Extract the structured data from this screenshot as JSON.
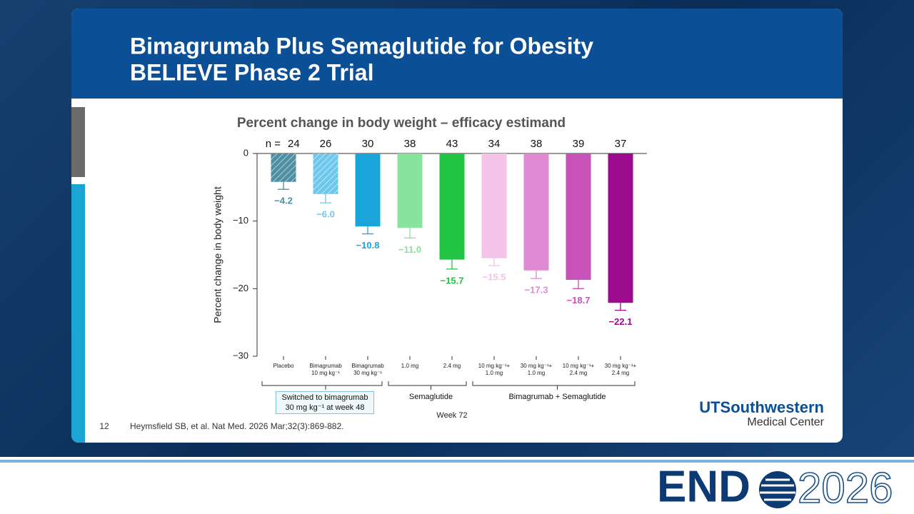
{
  "slide": {
    "title_line1": "Bimagrumab Plus Semaglutide for Obesity",
    "title_line2": "BELIEVE Phase 2 Trial",
    "slide_number": "12",
    "citation": "Heymsfield SB, et al. Nat Med. 2026 Mar;32(3):869-882.",
    "logo_name": "UTSouthwestern",
    "logo_sub": "Medical Center",
    "event_name": "END",
    "event_year": "2026"
  },
  "chart_data": {
    "type": "bar",
    "title": "Percent change in body weight – efficacy estimand",
    "y_label": "Percent change in body weight",
    "x_label": "Week 72",
    "n_prefix": "n =",
    "sample_sizes": [
      24,
      26,
      30,
      38,
      43,
      34,
      38,
      39,
      37
    ],
    "categories": [
      "Placebo",
      "Bimagrumab\n10 mg kg⁻¹",
      "Bimagrumab\n30 mg kg⁻¹",
      "1.0 mg",
      "2.4 mg",
      "10 mg kg⁻¹+\n1.0 mg",
      "30 mg kg⁻¹+\n1.0 mg",
      "10 mg kg⁻¹+\n2.4 mg",
      "30 mg kg⁻¹+\n2.4 mg"
    ],
    "values": [
      -4.2,
      -6.0,
      -10.8,
      -11.0,
      -15.7,
      -15.5,
      -17.3,
      -18.7,
      -22.1
    ],
    "value_labels": [
      "−4.2",
      "−6.0",
      "−10.8",
      "−11.0",
      "−15.7",
      "−15.5",
      "−17.3",
      "−18.7",
      "−22.1"
    ],
    "errors": [
      1.1,
      1.3,
      1.1,
      1.5,
      1.4,
      1.1,
      1.2,
      1.3,
      1.1
    ],
    "colors": [
      "#4f8fa3",
      "#6ec8ec",
      "#1aa5da",
      "#86e49c",
      "#22c443",
      "#f3c3e8",
      "#e08ad3",
      "#c752b8",
      "#9c0a8e"
    ],
    "hatched": [
      true,
      true,
      false,
      false,
      false,
      false,
      false,
      false,
      false
    ],
    "groups": [
      "Switched to bimagrumab\n30 mg kg⁻¹ at week 48",
      "Semaglutide",
      "Bimagrumab + Semaglutide"
    ],
    "ylim": [
      -30,
      0
    ],
    "yticks": [
      {
        "value": -30,
        "label": "−30"
      },
      {
        "value": -20,
        "label": "−20"
      },
      {
        "value": -10,
        "label": "−10"
      },
      0
    ]
  }
}
